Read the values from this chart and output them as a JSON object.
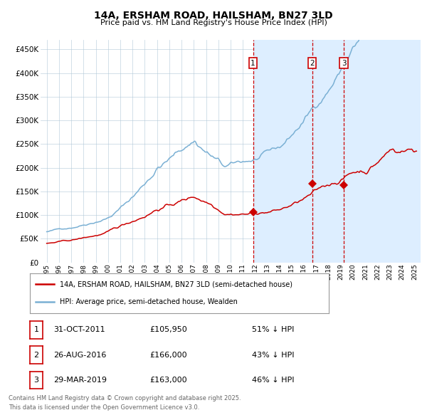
{
  "title": "14A, ERSHAM ROAD, HAILSHAM, BN27 3LD",
  "subtitle": "Price paid vs. HM Land Registry's House Price Index (HPI)",
  "legend_label_red": "14A, ERSHAM ROAD, HAILSHAM, BN27 3LD (semi-detached house)",
  "legend_label_blue": "HPI: Average price, semi-detached house, Wealden",
  "transactions": [
    {
      "num": 1,
      "date": "31-OCT-2011",
      "price": 105950,
      "hpi_pct": "51% ↓ HPI",
      "x_year": 2011.83
    },
    {
      "num": 2,
      "date": "26-AUG-2016",
      "price": 166000,
      "hpi_pct": "43% ↓ HPI",
      "x_year": 2016.65
    },
    {
      "num": 3,
      "date": "29-MAR-2019",
      "price": 163000,
      "hpi_pct": "46% ↓ HPI",
      "x_year": 2019.25
    }
  ],
  "footer_line1": "Contains HM Land Registry data © Crown copyright and database right 2025.",
  "footer_line2": "This data is licensed under the Open Government Licence v3.0.",
  "ylim": [
    0,
    470000
  ],
  "xlim_start": 1994.5,
  "xlim_end": 2025.5,
  "background_color": "#ffffff",
  "plot_bg_color": "#ddeeff",
  "shade_start": 2011.83,
  "red_color": "#cc0000",
  "blue_color": "#7ab0d4"
}
